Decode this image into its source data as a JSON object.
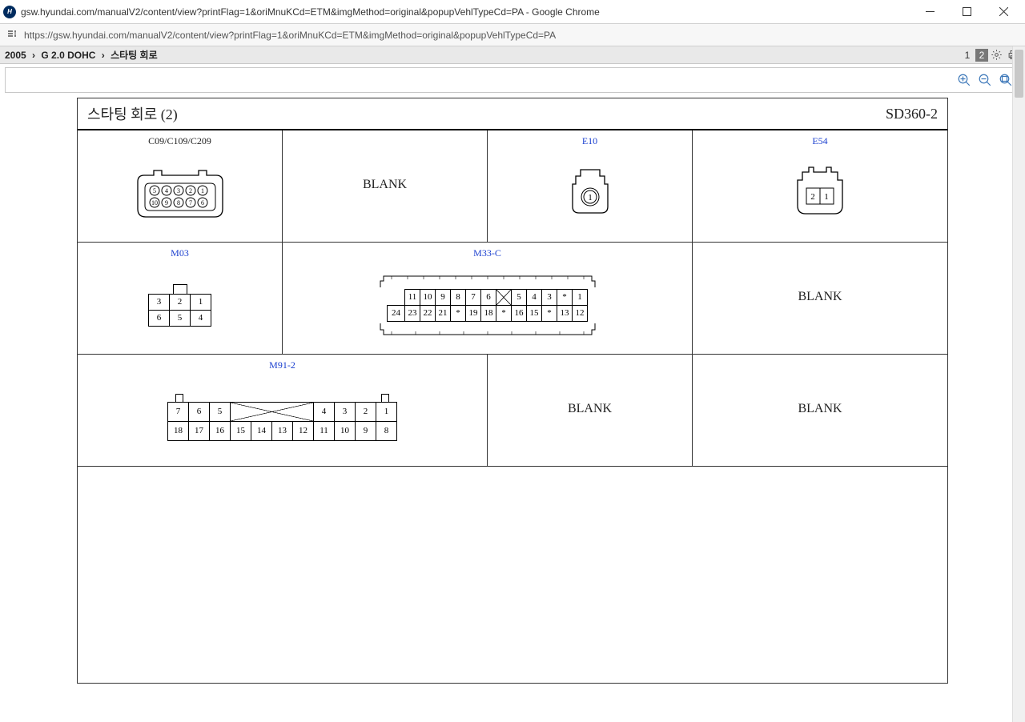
{
  "window": {
    "title": "gsw.hyundai.com/manualV2/content/view?printFlag=1&oriMnuKCd=ETM&imgMethod=original&popupVehlTypeCd=PA - Google Chrome"
  },
  "address": {
    "url": "https://gsw.hyundai.com/manualV2/content/view?printFlag=1&oriMnuKCd=ETM&imgMethod=original&popupVehlTypeCd=PA"
  },
  "breadcrumb": {
    "a": "2005",
    "b": "G 2.0 DOHC",
    "c": "스타팅 회로"
  },
  "pager": {
    "p1": "1",
    "p2": "2",
    "active": 2
  },
  "doc": {
    "title": "스타팅 회로 (2)",
    "code": "SD360-2",
    "blank": "BLANK"
  },
  "connectors": {
    "c09": {
      "label": "C09/C109/C209",
      "row1": [
        "5",
        "4",
        "3",
        "2",
        "1"
      ],
      "row2": [
        "10",
        "9",
        "8",
        "7",
        "6"
      ]
    },
    "e10": {
      "label": "E10",
      "pin": "1"
    },
    "e54": {
      "label": "E54",
      "pins": [
        "2",
        "1"
      ]
    },
    "m03": {
      "label": "M03",
      "row1": [
        "3",
        "2",
        "1"
      ],
      "row2": [
        "6",
        "5",
        "4"
      ]
    },
    "m33c": {
      "label": "M33-C",
      "row1": [
        "11",
        "10",
        "9",
        "8",
        "7",
        "6",
        "X",
        "5",
        "4",
        "3",
        "*",
        "1"
      ],
      "row2": [
        "24",
        "23",
        "22",
        "21",
        "*",
        "19",
        "18",
        "*",
        "16",
        "15",
        "*",
        "13",
        "12"
      ]
    },
    "m912": {
      "label": "M91-2",
      "row1": [
        "7",
        "6",
        "5",
        "XWIDE",
        "4",
        "3",
        "2",
        "1"
      ],
      "row2": [
        "18",
        "17",
        "16",
        "15",
        "14",
        "13",
        "12",
        "11",
        "10",
        "9",
        "8"
      ]
    }
  }
}
